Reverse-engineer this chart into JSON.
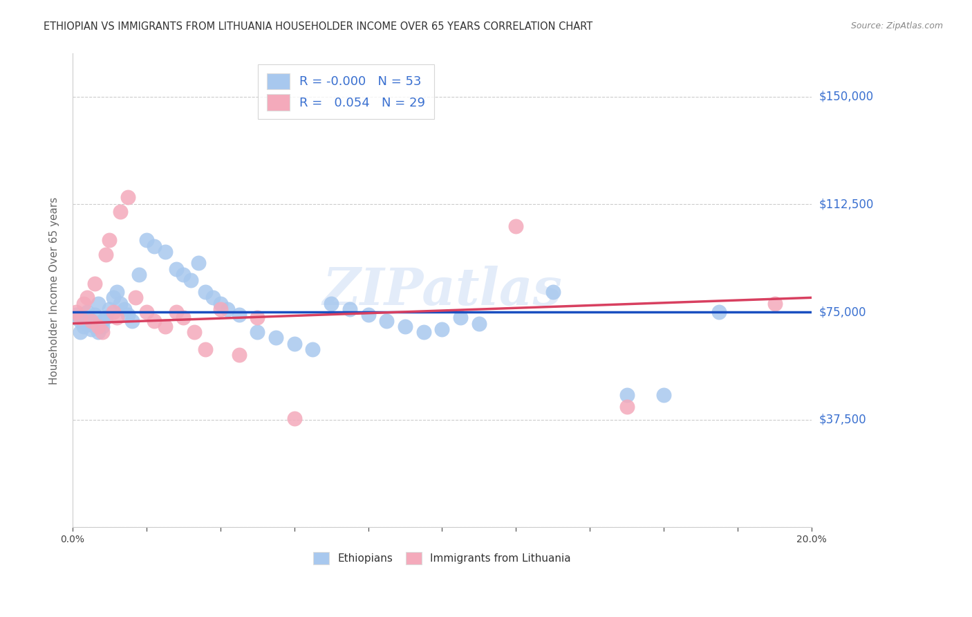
{
  "title": "ETHIOPIAN VS IMMIGRANTS FROM LITHUANIA HOUSEHOLDER INCOME OVER 65 YEARS CORRELATION CHART",
  "source": "Source: ZipAtlas.com",
  "ylabel": "Householder Income Over 65 years",
  "y_ticks": [
    0,
    37500,
    75000,
    112500,
    150000
  ],
  "y_tick_labels": [
    "",
    "$37,500",
    "$75,000",
    "$112,500",
    "$150,000"
  ],
  "xmin": 0.0,
  "xmax": 0.2,
  "ymin": 0,
  "ymax": 165000,
  "r_ethiopian": "-0.000",
  "n_ethiopian": "53",
  "r_lithuania": "0.054",
  "n_lithuania": "29",
  "color_blue": "#A8C8EE",
  "color_pink": "#F4AABB",
  "color_blue_line": "#1A4FC0",
  "color_pink_line": "#D84060",
  "color_label_blue": "#3A70D0",
  "watermark": "ZIPatlas",
  "ethiopian_x": [
    0.001,
    0.002,
    0.002,
    0.003,
    0.003,
    0.004,
    0.004,
    0.005,
    0.005,
    0.006,
    0.006,
    0.007,
    0.007,
    0.008,
    0.008,
    0.009,
    0.01,
    0.011,
    0.012,
    0.013,
    0.014,
    0.015,
    0.016,
    0.018,
    0.02,
    0.022,
    0.025,
    0.028,
    0.03,
    0.032,
    0.034,
    0.036,
    0.038,
    0.04,
    0.042,
    0.045,
    0.05,
    0.055,
    0.06,
    0.065,
    0.07,
    0.075,
    0.08,
    0.085,
    0.09,
    0.095,
    0.1,
    0.105,
    0.11,
    0.13,
    0.15,
    0.16,
    0.175
  ],
  "ethiopian_y": [
    74000,
    72000,
    68000,
    70000,
    73000,
    71000,
    75000,
    69000,
    72000,
    70000,
    74000,
    68000,
    78000,
    72000,
    70000,
    73000,
    76000,
    80000,
    82000,
    78000,
    76000,
    74000,
    72000,
    88000,
    100000,
    98000,
    96000,
    90000,
    88000,
    86000,
    92000,
    82000,
    80000,
    78000,
    76000,
    74000,
    68000,
    66000,
    64000,
    62000,
    78000,
    76000,
    74000,
    72000,
    70000,
    68000,
    69000,
    73000,
    71000,
    82000,
    46000,
    46000,
    75000
  ],
  "lithuania_x": [
    0.001,
    0.002,
    0.003,
    0.004,
    0.005,
    0.006,
    0.007,
    0.008,
    0.009,
    0.01,
    0.011,
    0.012,
    0.013,
    0.015,
    0.017,
    0.02,
    0.022,
    0.025,
    0.028,
    0.03,
    0.033,
    0.036,
    0.04,
    0.045,
    0.05,
    0.06,
    0.12,
    0.15,
    0.19
  ],
  "lithuania_y": [
    75000,
    73000,
    78000,
    80000,
    72000,
    85000,
    70000,
    68000,
    95000,
    100000,
    75000,
    73000,
    110000,
    115000,
    80000,
    75000,
    72000,
    70000,
    75000,
    73000,
    68000,
    62000,
    76000,
    60000,
    73000,
    38000,
    105000,
    42000,
    78000
  ],
  "eth_trend_y0": 75000,
  "eth_trend_y1": 75000,
  "lit_trend_y0": 71000,
  "lit_trend_y1": 80000
}
